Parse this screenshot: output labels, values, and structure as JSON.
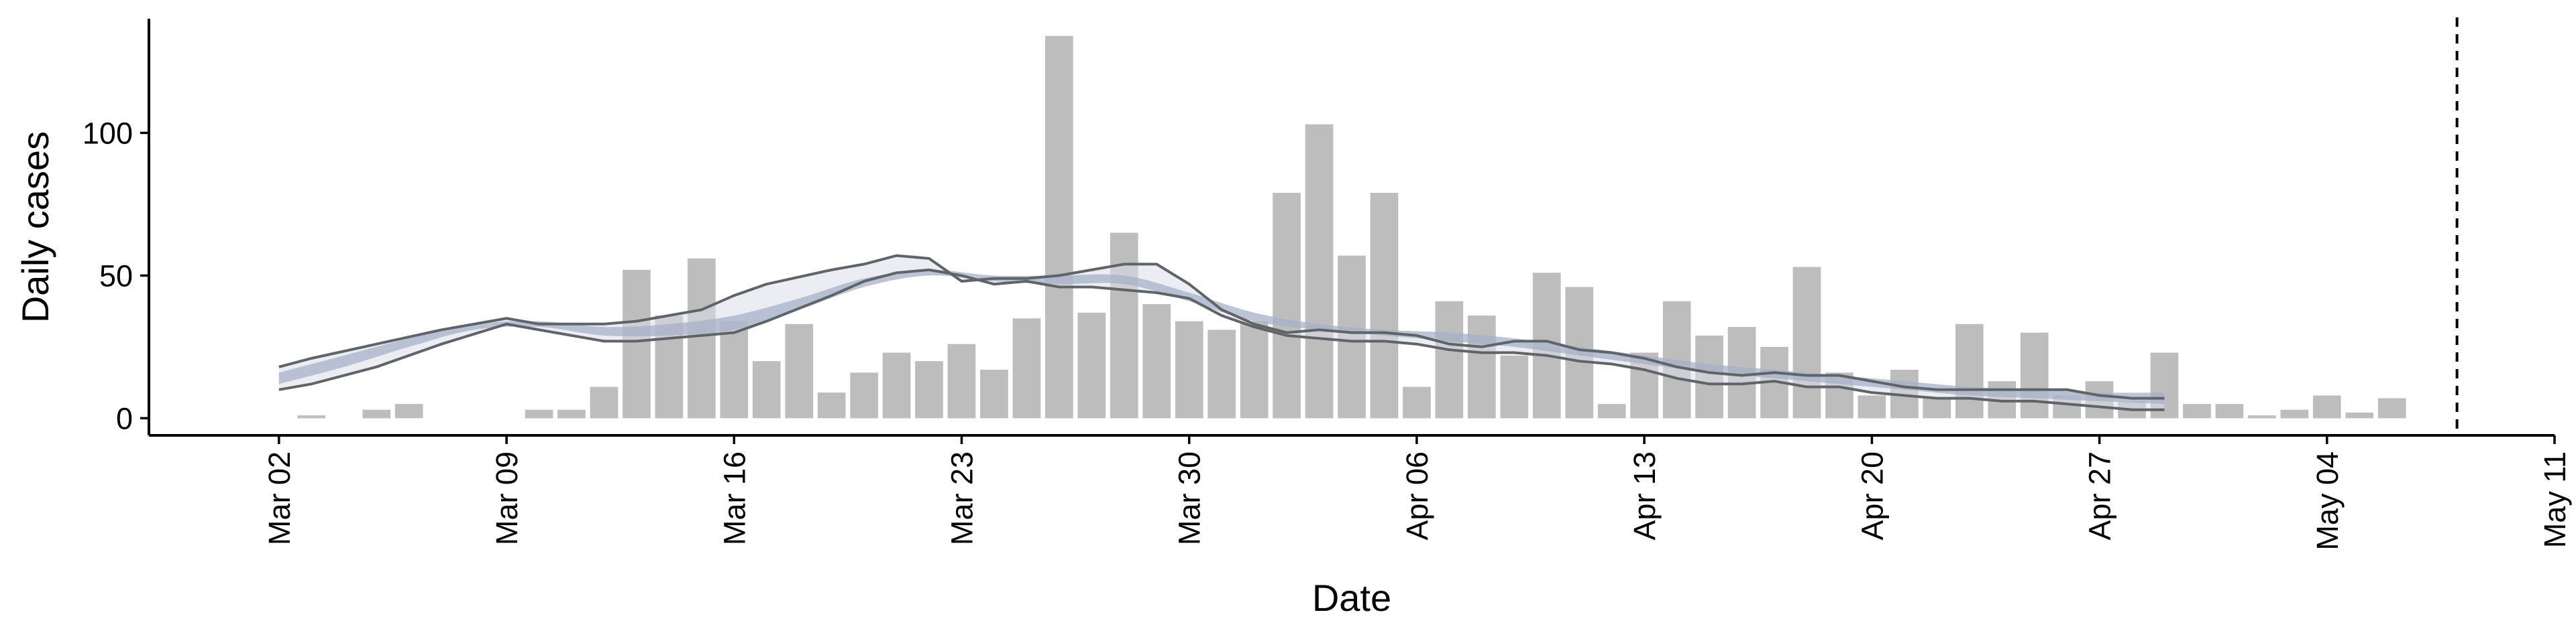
{
  "chart_data": {
    "type": "bar",
    "title": "",
    "xlabel": "Date",
    "ylabel": "Daily cases",
    "x_start": "2020-03-01",
    "xlim": [
      "2020-02-27",
      "2020-05-11"
    ],
    "ylim": [
      -6,
      140
    ],
    "yticks": [
      0,
      50,
      100
    ],
    "xticks": [
      {
        "date": "2020-03-02",
        "label": "Mar 02"
      },
      {
        "date": "2020-03-09",
        "label": "Mar 09"
      },
      {
        "date": "2020-03-16",
        "label": "Mar 16"
      },
      {
        "date": "2020-03-23",
        "label": "Mar 23"
      },
      {
        "date": "2020-03-30",
        "label": "Mar 30"
      },
      {
        "date": "2020-04-06",
        "label": "Apr 06"
      },
      {
        "date": "2020-04-13",
        "label": "Apr 13"
      },
      {
        "date": "2020-04-20",
        "label": "Apr 20"
      },
      {
        "date": "2020-04-27",
        "label": "Apr 27"
      },
      {
        "date": "2020-05-04",
        "label": "May 04"
      },
      {
        "date": "2020-05-11",
        "label": "May 11"
      }
    ],
    "bars": {
      "start_date": "2020-03-01",
      "values": [
        0,
        0,
        1,
        0,
        3,
        5,
        0,
        0,
        0,
        3,
        3,
        11,
        52,
        36,
        56,
        34,
        20,
        33,
        9,
        16,
        23,
        20,
        26,
        17,
        35,
        134,
        37,
        65,
        40,
        34,
        31,
        34,
        79,
        103,
        57,
        79,
        11,
        41,
        36,
        22,
        51,
        46,
        5,
        23,
        41,
        29,
        32,
        25,
        53,
        16,
        8,
        17,
        7,
        33,
        13,
        30,
        8,
        13,
        6,
        23,
        5,
        5,
        1,
        3,
        8,
        2,
        7
      ],
      "color": "#bdbdbd"
    },
    "bounds": {
      "x": [
        "2020-03-02",
        "2020-03-03",
        "2020-03-05",
        "2020-03-07",
        "2020-03-09",
        "2020-03-10",
        "2020-03-12",
        "2020-03-13",
        "2020-03-15",
        "2020-03-16",
        "2020-03-17",
        "2020-03-19",
        "2020-03-20",
        "2020-03-21",
        "2020-03-22",
        "2020-03-23",
        "2020-03-24",
        "2020-03-25",
        "2020-03-26",
        "2020-03-27",
        "2020-03-28",
        "2020-03-29",
        "2020-03-30",
        "2020-03-31",
        "2020-04-01",
        "2020-04-02",
        "2020-04-03",
        "2020-04-04",
        "2020-04-05",
        "2020-04-06",
        "2020-04-07",
        "2020-04-08",
        "2020-04-09",
        "2020-04-10",
        "2020-04-11",
        "2020-04-12",
        "2020-04-13",
        "2020-04-14",
        "2020-04-15",
        "2020-04-16",
        "2020-04-17",
        "2020-04-18",
        "2020-04-19",
        "2020-04-20",
        "2020-04-21",
        "2020-04-22",
        "2020-04-23",
        "2020-04-24",
        "2020-04-25",
        "2020-04-26",
        "2020-04-27",
        "2020-04-28",
        "2020-04-29"
      ],
      "upper": [
        18,
        21,
        26,
        31,
        35,
        33,
        33,
        34,
        38,
        43,
        47,
        52,
        54,
        57,
        56,
        48,
        49,
        49,
        50,
        52,
        54,
        54,
        47,
        38,
        33,
        30,
        31,
        30,
        30,
        29,
        26,
        25,
        27,
        27,
        24,
        23,
        21,
        18,
        16,
        15,
        16,
        15,
        15,
        13,
        11,
        10,
        10,
        10,
        10,
        10,
        8,
        7,
        7
      ],
      "lower": [
        10,
        12,
        18,
        26,
        33,
        31,
        27,
        27,
        29,
        30,
        34,
        43,
        48,
        51,
        52,
        50,
        47,
        48,
        46,
        46,
        45,
        44,
        42,
        36,
        32,
        29,
        28,
        27,
        27,
        26,
        24,
        23,
        23,
        22,
        20,
        19,
        17,
        14,
        12,
        12,
        13,
        11,
        11,
        9,
        8,
        7,
        7,
        6,
        6,
        5,
        4,
        3,
        3
      ],
      "line_color": "#5f6469"
    },
    "ribbon": {
      "x": [
        "2020-03-02",
        "2020-03-04",
        "2020-03-06",
        "2020-03-08",
        "2020-03-10",
        "2020-03-12",
        "2020-03-14",
        "2020-03-16",
        "2020-03-18",
        "2020-03-20",
        "2020-03-22",
        "2020-03-24",
        "2020-03-26",
        "2020-03-28",
        "2020-03-30",
        "2020-04-01",
        "2020-04-03",
        "2020-04-05",
        "2020-04-07",
        "2020-04-09",
        "2020-04-11",
        "2020-04-13",
        "2020-04-15",
        "2020-04-17",
        "2020-04-19",
        "2020-04-21",
        "2020-04-23",
        "2020-04-25",
        "2020-04-27",
        "2020-04-29"
      ],
      "inner_upper": [
        16,
        22,
        28,
        33,
        34,
        32,
        33,
        36,
        42,
        49,
        52,
        50,
        50,
        50,
        44,
        37,
        33,
        31,
        30,
        28,
        25,
        22,
        19,
        17,
        15,
        13,
        11,
        10,
        9,
        9
      ],
      "inner_lower": [
        12,
        18,
        25,
        31,
        32,
        29,
        29,
        31,
        38,
        46,
        50,
        48,
        47,
        47,
        41,
        34,
        31,
        29,
        27,
        25,
        22,
        19,
        16,
        14,
        12,
        10,
        8,
        7,
        6,
        5
      ],
      "inner_color": "#a7b0c8",
      "outer_color": "#dcdfea"
    },
    "vline": {
      "date": "2020-05-08",
      "color": "#000000",
      "style": "dashed"
    }
  }
}
